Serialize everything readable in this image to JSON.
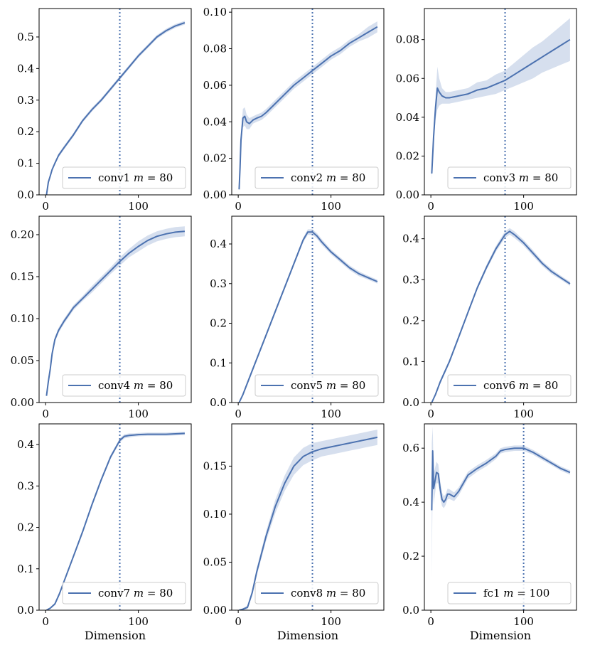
{
  "figure": {
    "xlabel": "Dimension"
  },
  "colors": {
    "line": "#4c72b0",
    "band": "#b4c5e0",
    "vline": "#4c72b0",
    "axis": "#000000"
  },
  "chart_data": [
    {
      "type": "line",
      "legend": "conv1",
      "m": 80,
      "marker": 80,
      "xlim": [
        -7,
        157
      ],
      "ylim": [
        0,
        0.59
      ],
      "yticks": [
        0.0,
        0.1,
        0.2,
        0.3,
        0.4,
        0.5
      ],
      "ytick_labels": [
        "0.0",
        "0.1",
        "0.2",
        "0.3",
        "0.4",
        "0.5"
      ],
      "xticks": [
        0,
        100
      ],
      "xtick_labels": [
        "0",
        "100"
      ],
      "x": [
        1,
        3,
        5,
        7,
        10,
        14,
        20,
        30,
        40,
        50,
        60,
        70,
        80,
        90,
        100,
        110,
        120,
        130,
        140,
        150
      ],
      "y": [
        0.0,
        0.04,
        0.06,
        0.08,
        0.1,
        0.125,
        0.15,
        0.19,
        0.235,
        0.27,
        0.3,
        0.335,
        0.37,
        0.405,
        0.44,
        0.47,
        0.5,
        0.52,
        0.535,
        0.545
      ],
      "band": [
        0.002,
        0.004,
        0.004,
        0.005,
        0.005,
        0.006,
        0.006,
        0.006,
        0.006,
        0.006,
        0.006,
        0.006,
        0.006,
        0.006,
        0.006,
        0.006,
        0.006,
        0.006,
        0.006,
        0.006
      ]
    },
    {
      "type": "line",
      "legend": "conv2",
      "m": 80,
      "marker": 80,
      "xlim": [
        -7,
        157
      ],
      "ylim": [
        0,
        0.102
      ],
      "yticks": [
        0.0,
        0.02,
        0.04,
        0.06,
        0.08,
        0.1
      ],
      "ytick_labels": [
        "0.00",
        "0.02",
        "0.04",
        "0.06",
        "0.08",
        "0.10"
      ],
      "xticks": [
        0,
        100
      ],
      "xtick_labels": [
        "0",
        "100"
      ],
      "x": [
        1,
        2,
        3,
        5,
        7,
        9,
        12,
        16,
        20,
        25,
        30,
        40,
        50,
        60,
        70,
        80,
        90,
        100,
        110,
        120,
        130,
        140,
        150
      ],
      "y": [
        0.003,
        0.015,
        0.03,
        0.042,
        0.043,
        0.04,
        0.039,
        0.041,
        0.042,
        0.043,
        0.045,
        0.05,
        0.055,
        0.06,
        0.064,
        0.068,
        0.072,
        0.076,
        0.079,
        0.083,
        0.086,
        0.089,
        0.092
      ],
      "band": [
        0.0,
        0.003,
        0.004,
        0.005,
        0.005,
        0.004,
        0.003,
        0.002,
        0.002,
        0.002,
        0.002,
        0.002,
        0.002,
        0.002,
        0.002,
        0.002,
        0.002,
        0.002,
        0.002,
        0.002,
        0.002,
        0.003,
        0.003
      ]
    },
    {
      "type": "line",
      "legend": "conv3",
      "m": 80,
      "marker": 80,
      "xlim": [
        -7,
        157
      ],
      "ylim": [
        0,
        0.096
      ],
      "yticks": [
        0.0,
        0.02,
        0.04,
        0.06,
        0.08
      ],
      "ytick_labels": [
        "0.00",
        "0.02",
        "0.04",
        "0.06",
        "0.08"
      ],
      "xticks": [
        0,
        100
      ],
      "xtick_labels": [
        "0",
        "100"
      ],
      "x": [
        1,
        3,
        5,
        7,
        9,
        12,
        16,
        20,
        30,
        40,
        50,
        60,
        70,
        80,
        90,
        100,
        110,
        120,
        130,
        140,
        150
      ],
      "y": [
        0.011,
        0.03,
        0.045,
        0.055,
        0.053,
        0.051,
        0.05,
        0.05,
        0.051,
        0.052,
        0.054,
        0.055,
        0.057,
        0.059,
        0.062,
        0.065,
        0.068,
        0.071,
        0.074,
        0.077,
        0.08
      ],
      "band": [
        0.003,
        0.005,
        0.006,
        0.011,
        0.007,
        0.004,
        0.003,
        0.003,
        0.003,
        0.003,
        0.004,
        0.004,
        0.005,
        0.005,
        0.006,
        0.007,
        0.008,
        0.008,
        0.009,
        0.01,
        0.011
      ]
    },
    {
      "type": "line",
      "legend": "conv4",
      "m": 80,
      "marker": 80,
      "xlim": [
        -7,
        157
      ],
      "ylim": [
        0,
        0.222
      ],
      "yticks": [
        0.0,
        0.05,
        0.1,
        0.15,
        0.2
      ],
      "ytick_labels": [
        "0.00",
        "0.05",
        "0.10",
        "0.15",
        "0.20"
      ],
      "xticks": [
        0,
        100
      ],
      "xtick_labels": [
        "0",
        "100"
      ],
      "x": [
        1,
        3,
        5,
        7,
        10,
        14,
        20,
        25,
        30,
        40,
        50,
        60,
        70,
        80,
        90,
        100,
        110,
        120,
        130,
        140,
        150
      ],
      "y": [
        0.008,
        0.025,
        0.04,
        0.058,
        0.075,
        0.086,
        0.097,
        0.105,
        0.113,
        0.124,
        0.135,
        0.146,
        0.157,
        0.168,
        0.178,
        0.186,
        0.193,
        0.198,
        0.201,
        0.203,
        0.204
      ],
      "band": [
        0.001,
        0.002,
        0.002,
        0.003,
        0.003,
        0.003,
        0.003,
        0.003,
        0.003,
        0.003,
        0.004,
        0.004,
        0.004,
        0.005,
        0.005,
        0.006,
        0.006,
        0.006,
        0.006,
        0.006,
        0.006
      ]
    },
    {
      "type": "line",
      "legend": "conv5",
      "m": 80,
      "marker": 80,
      "xlim": [
        -7,
        157
      ],
      "ylim": [
        0,
        0.47
      ],
      "yticks": [
        0.0,
        0.1,
        0.2,
        0.3,
        0.4
      ],
      "ytick_labels": [
        "0.0",
        "0.1",
        "0.2",
        "0.3",
        "0.4"
      ],
      "xticks": [
        0,
        100
      ],
      "xtick_labels": [
        "0",
        "100"
      ],
      "x": [
        1,
        5,
        10,
        20,
        30,
        40,
        50,
        60,
        70,
        75,
        80,
        85,
        90,
        100,
        110,
        120,
        130,
        140,
        150
      ],
      "y": [
        0.0,
        0.02,
        0.05,
        0.11,
        0.17,
        0.23,
        0.29,
        0.35,
        0.41,
        0.43,
        0.43,
        0.42,
        0.405,
        0.38,
        0.36,
        0.34,
        0.325,
        0.315,
        0.305
      ],
      "band": [
        0.0,
        0.004,
        0.005,
        0.005,
        0.005,
        0.005,
        0.005,
        0.005,
        0.006,
        0.007,
        0.007,
        0.007,
        0.007,
        0.006,
        0.006,
        0.006,
        0.006,
        0.005,
        0.005
      ]
    },
    {
      "type": "line",
      "legend": "conv6",
      "m": 80,
      "marker": 80,
      "xlim": [
        -7,
        157
      ],
      "ylim": [
        0,
        0.455
      ],
      "yticks": [
        0.0,
        0.1,
        0.2,
        0.3,
        0.4
      ],
      "ytick_labels": [
        "0.0",
        "0.1",
        "0.2",
        "0.3",
        "0.4"
      ],
      "xticks": [
        0,
        100
      ],
      "xtick_labels": [
        "0",
        "100"
      ],
      "x": [
        1,
        5,
        10,
        20,
        30,
        40,
        50,
        60,
        70,
        80,
        85,
        90,
        100,
        110,
        120,
        130,
        140,
        150
      ],
      "y": [
        0.0,
        0.02,
        0.05,
        0.1,
        0.16,
        0.22,
        0.28,
        0.33,
        0.375,
        0.41,
        0.418,
        0.41,
        0.39,
        0.365,
        0.34,
        0.32,
        0.305,
        0.29
      ],
      "band": [
        0.0,
        0.004,
        0.005,
        0.005,
        0.005,
        0.005,
        0.005,
        0.006,
        0.007,
        0.008,
        0.008,
        0.008,
        0.007,
        0.007,
        0.006,
        0.006,
        0.005,
        0.005
      ]
    },
    {
      "type": "line",
      "legend": "conv7",
      "m": 80,
      "marker": 80,
      "xlim": [
        -7,
        157
      ],
      "ylim": [
        0,
        0.45
      ],
      "yticks": [
        0.0,
        0.1,
        0.2,
        0.3,
        0.4
      ],
      "ytick_labels": [
        "0.0",
        "0.1",
        "0.2",
        "0.3",
        "0.4"
      ],
      "xticks": [
        0,
        100
      ],
      "xtick_labels": [
        "0",
        "100"
      ],
      "x": [
        1,
        5,
        10,
        15,
        20,
        30,
        40,
        50,
        60,
        70,
        80,
        85,
        90,
        95,
        100,
        110,
        120,
        130,
        140,
        150
      ],
      "y": [
        0.0,
        0.005,
        0.015,
        0.04,
        0.07,
        0.13,
        0.19,
        0.255,
        0.315,
        0.37,
        0.41,
        0.42,
        0.422,
        0.423,
        0.424,
        0.425,
        0.425,
        0.425,
        0.426,
        0.427
      ],
      "band": [
        0.0,
        0.002,
        0.003,
        0.004,
        0.004,
        0.004,
        0.005,
        0.005,
        0.005,
        0.005,
        0.005,
        0.005,
        0.005,
        0.004,
        0.004,
        0.004,
        0.004,
        0.004,
        0.004,
        0.004
      ]
    },
    {
      "type": "line",
      "legend": "conv8",
      "m": 80,
      "marker": 80,
      "xlim": [
        -7,
        157
      ],
      "ylim": [
        0,
        0.194
      ],
      "yticks": [
        0.0,
        0.05,
        0.1,
        0.15
      ],
      "ytick_labels": [
        "0.00",
        "0.05",
        "0.10",
        "0.15"
      ],
      "xticks": [
        0,
        100
      ],
      "xtick_labels": [
        "0",
        "100"
      ],
      "x": [
        1,
        5,
        10,
        15,
        20,
        30,
        40,
        50,
        60,
        70,
        80,
        90,
        100,
        110,
        120,
        130,
        140,
        150
      ],
      "y": [
        0.0,
        0.001,
        0.003,
        0.018,
        0.04,
        0.077,
        0.108,
        0.132,
        0.15,
        0.16,
        0.165,
        0.168,
        0.17,
        0.172,
        0.174,
        0.176,
        0.178,
        0.18
      ],
      "band": [
        0.0,
        0.001,
        0.002,
        0.003,
        0.004,
        0.005,
        0.007,
        0.008,
        0.009,
        0.009,
        0.009,
        0.008,
        0.008,
        0.008,
        0.008,
        0.008,
        0.008,
        0.008
      ]
    },
    {
      "type": "line",
      "legend": "fc1",
      "m": 100,
      "marker": 100,
      "xlim": [
        -7,
        157
      ],
      "ylim": [
        0,
        0.69
      ],
      "yticks": [
        0.0,
        0.2,
        0.4,
        0.6
      ],
      "ytick_labels": [
        "0.0",
        "0.2",
        "0.4",
        "0.6"
      ],
      "xticks": [
        0,
        100
      ],
      "xtick_labels": [
        "0",
        "100"
      ],
      "x": [
        1,
        2,
        3,
        4,
        6,
        8,
        10,
        12,
        14,
        16,
        18,
        20,
        25,
        30,
        35,
        40,
        50,
        60,
        70,
        75,
        80,
        90,
        100,
        110,
        120,
        130,
        140,
        150
      ],
      "y": [
        0.37,
        0.59,
        0.45,
        0.47,
        0.51,
        0.505,
        0.45,
        0.41,
        0.4,
        0.41,
        0.43,
        0.43,
        0.42,
        0.44,
        0.47,
        0.5,
        0.525,
        0.545,
        0.57,
        0.59,
        0.595,
        0.6,
        0.6,
        0.585,
        0.565,
        0.545,
        0.525,
        0.51
      ],
      "band": [
        0.25,
        0.09,
        0.06,
        0.05,
        0.04,
        0.035,
        0.03,
        0.025,
        0.022,
        0.02,
        0.02,
        0.018,
        0.016,
        0.015,
        0.014,
        0.013,
        0.012,
        0.012,
        0.011,
        0.01,
        0.01,
        0.01,
        0.01,
        0.009,
        0.009,
        0.008,
        0.008,
        0.008
      ]
    }
  ]
}
